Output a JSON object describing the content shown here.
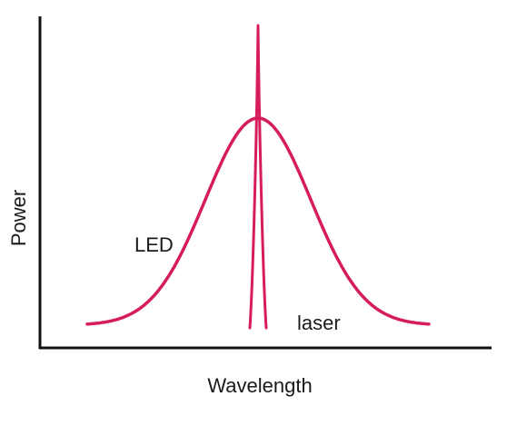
{
  "chart_data": {
    "type": "line",
    "xlabel": "Wavelength",
    "ylabel": "Power",
    "grid": false,
    "legend": "none",
    "axis_ticks": false,
    "curve_color": "#d61d5a",
    "axis_color": "#111111",
    "series": [
      {
        "name": "LED",
        "shape": "broad-peak",
        "annotation": "LED"
      },
      {
        "name": "laser",
        "shape": "narrow-spike",
        "annotation": "laser"
      }
    ]
  }
}
